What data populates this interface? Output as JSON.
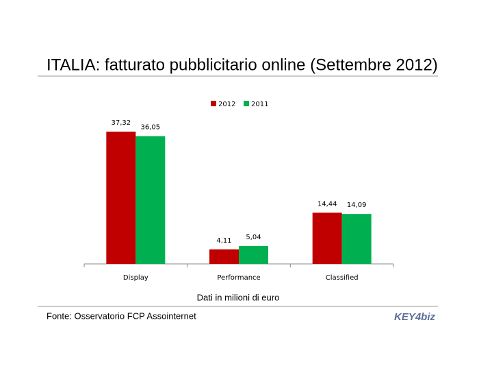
{
  "chart_data": {
    "type": "bar",
    "title": "ITALIA: fatturato pubblicitario online (Settembre 2012)",
    "categories": [
      "Display",
      "Performance",
      "Classified"
    ],
    "series": [
      {
        "name": "2012",
        "color": "#c00000",
        "values": [
          37.32,
          4.11,
          14.44
        ],
        "value_labels": [
          "37,32",
          "4,11",
          "14,44"
        ]
      },
      {
        "name": "2011",
        "color": "#00b050",
        "values": [
          36.05,
          5.04,
          14.09
        ],
        "value_labels": [
          "36,05",
          "5,04",
          "14,09"
        ]
      }
    ],
    "x_label": "Dati in milioni di euro",
    "source": "Fonte: Osservatorio FCP Assointernet",
    "logo": "KEY4biz",
    "legend": "top"
  }
}
